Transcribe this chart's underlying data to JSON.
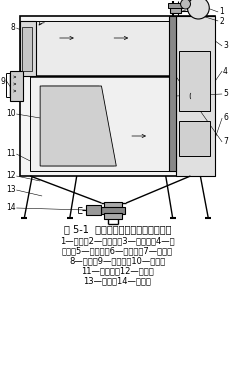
{
  "title": "图 5-1  扁袋除尘机组组成和工作原理",
  "caption_lines": [
    "1—气包；2—脉冲阀；3—净气室；4—检",
    "修门；5—喷吹管；6—出风口；7—花板；",
    "8—挡板；9—进风口；10—滤袋；",
    "11—过滤室；12—灰斗；",
    "13—支腿；14—卸灰阀"
  ],
  "bg_color": "#ffffff",
  "line_color": "#000000",
  "text_color": "#000000",
  "title_fontsize": 7.0,
  "caption_fontsize": 6.0
}
